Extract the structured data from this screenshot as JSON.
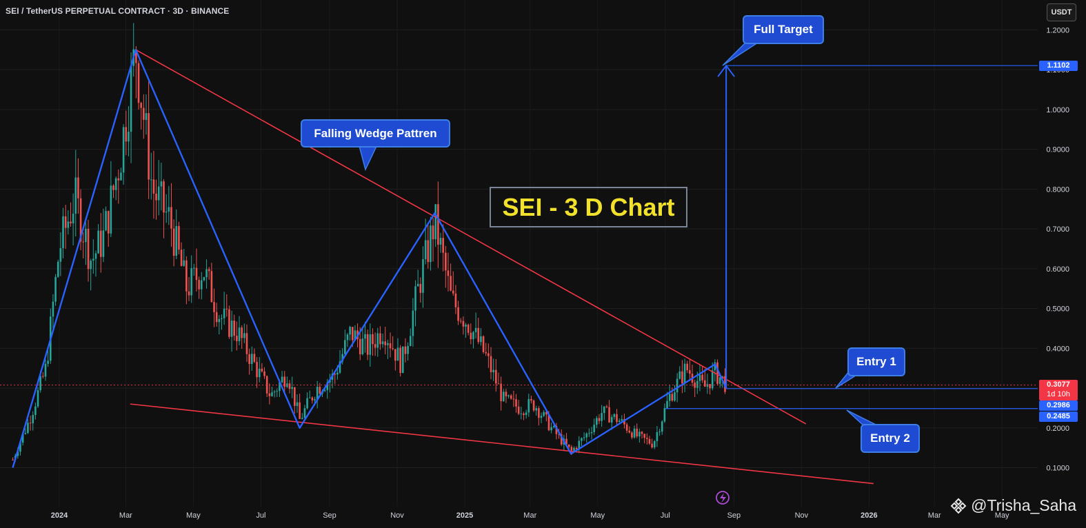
{
  "header": {
    "symbol_title": "SEI / TetherUS PERPETUAL CONTRACT · 3D · BINANCE",
    "currency_button": "USDT"
  },
  "annotations": {
    "main_title": "SEI - 3 D Chart",
    "wedge_label": "Falling Wedge Pattren",
    "target_label": "Full Target",
    "entry1_label": "Entry 1",
    "entry2_label": "Entry 2",
    "watermark": "@Trisha_Saha"
  },
  "price_tags": {
    "target": "1.1102",
    "current": "0.3077",
    "countdown": "1d 10h",
    "entry1": "0.2986",
    "entry2": "0.2485"
  },
  "colors": {
    "background": "#101010",
    "up_candle": "#26a69a",
    "down_candle": "#ef5350",
    "pattern_line": "#2962ff",
    "wedge_line": "#f23645",
    "callout": "#1e4bd1",
    "title_text": "#f2e12b"
  },
  "icons": {
    "alert": "lightning-icon",
    "watermark": "binance-diamond-icon"
  },
  "chart_data": {
    "type": "candlestick",
    "title": "SEI / TetherUS PERPETUAL CONTRACT · 3D · BINANCE",
    "y_axis": {
      "ticks": [
        1.2,
        1.1,
        1.0,
        0.9,
        0.8,
        0.7,
        0.6,
        0.5,
        0.4,
        0.3,
        0.2,
        0.1
      ],
      "tick_labels": [
        "1.2000",
        "1.1000",
        "1.0000",
        "0.9000",
        "0.8000",
        "0.7000",
        "0.6000",
        "0.5000",
        "0.4000",
        "0.3000",
        "0.2000",
        "0.1000"
      ],
      "range": [
        0.0,
        1.3
      ]
    },
    "x_axis": {
      "tick_labels": [
        "2024",
        "Mar",
        "May",
        "Jul",
        "Sep",
        "Nov",
        "2025",
        "Mar",
        "May",
        "Jul",
        "Sep",
        "Nov",
        "2026",
        "Mar",
        "May"
      ],
      "bold_labels": [
        "2024",
        "2025",
        "2026"
      ]
    },
    "price_path": [
      [
        "2023-11-20",
        0.12
      ],
      [
        "2023-12-05",
        0.22
      ],
      [
        "2023-12-20",
        0.35
      ],
      [
        "2024-01-01",
        0.65
      ],
      [
        "2024-01-15",
        0.78
      ],
      [
        "2024-01-30",
        0.62
      ],
      [
        "2024-02-10",
        0.68
      ],
      [
        "2024-02-25",
        0.88
      ],
      [
        "2024-03-10",
        1.15
      ],
      [
        "2024-03-25",
        0.8
      ],
      [
        "2024-04-10",
        0.72
      ],
      [
        "2024-04-25",
        0.55
      ],
      [
        "2024-05-10",
        0.6
      ],
      [
        "2024-05-25",
        0.48
      ],
      [
        "2024-06-10",
        0.44
      ],
      [
        "2024-06-25",
        0.36
      ],
      [
        "2024-07-10",
        0.28
      ],
      [
        "2024-07-25",
        0.34
      ],
      [
        "2024-08-05",
        0.22
      ],
      [
        "2024-08-20",
        0.3
      ],
      [
        "2024-09-05",
        0.33
      ],
      [
        "2024-09-20",
        0.44
      ],
      [
        "2024-10-05",
        0.4
      ],
      [
        "2024-10-20",
        0.45
      ],
      [
        "2024-11-05",
        0.36
      ],
      [
        "2024-11-20",
        0.55
      ],
      [
        "2024-12-05",
        0.72
      ],
      [
        "2024-12-20",
        0.52
      ],
      [
        "2025-01-05",
        0.46
      ],
      [
        "2025-01-20",
        0.38
      ],
      [
        "2025-02-05",
        0.27
      ],
      [
        "2025-02-20",
        0.25
      ],
      [
        "2025-03-05",
        0.26
      ],
      [
        "2025-03-20",
        0.2
      ],
      [
        "2025-04-07",
        0.14
      ],
      [
        "2025-04-20",
        0.18
      ],
      [
        "2025-05-05",
        0.24
      ],
      [
        "2025-05-20",
        0.22
      ],
      [
        "2025-06-05",
        0.18
      ],
      [
        "2025-06-20",
        0.16
      ],
      [
        "2025-07-05",
        0.28
      ],
      [
        "2025-07-20",
        0.35
      ],
      [
        "2025-08-05",
        0.3
      ],
      [
        "2025-08-15",
        0.34
      ],
      [
        "2025-08-25",
        0.31
      ]
    ],
    "levels": {
      "full_target": 1.1102,
      "current_price": 0.3077,
      "entry_1": 0.2986,
      "entry_2": 0.2485
    },
    "pattern_points": [
      [
        "2023-11-20",
        0.1
      ],
      [
        "2024-03-10",
        1.15
      ],
      [
        "2024-08-05",
        0.2
      ],
      [
        "2024-12-05",
        0.74
      ],
      [
        "2025-04-07",
        0.135
      ],
      [
        "2025-08-15",
        0.36
      ],
      [
        "2025-08-25",
        0.3
      ]
    ],
    "wedge_upper": [
      [
        "2024-03-10",
        1.15
      ],
      [
        "2025-11-05",
        0.21
      ]
    ],
    "wedge_lower": [
      [
        "2024-03-05",
        0.26
      ],
      [
        "2026-01-05",
        0.06
      ]
    ],
    "grid": true
  }
}
